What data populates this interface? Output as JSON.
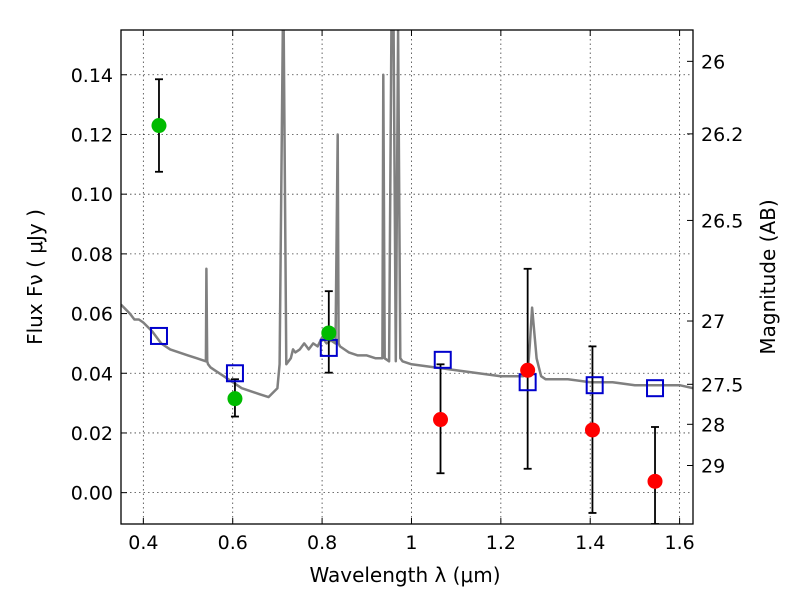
{
  "chart_data": {
    "type": "scatter",
    "xlabel": "Wavelength  λ (μm)",
    "ylabel": "Flux  Fν  ( μJy )",
    "y2label": "Magnitude (AB)",
    "xlim": [
      0.35,
      1.63
    ],
    "ylim": [
      -0.0105,
      0.155
    ],
    "grid": true,
    "x_ticks": [
      0.4,
      0.6,
      0.8,
      1.0,
      1.2,
      1.4,
      1.6
    ],
    "x_tick_labels": [
      "0.4",
      "0.6",
      "0.8",
      "1",
      "1.2",
      "1.4",
      "1.6"
    ],
    "y_ticks": [
      0.0,
      0.02,
      0.04,
      0.06,
      0.08,
      0.1,
      0.12,
      0.14
    ],
    "y_tick_labels": [
      "0.00",
      "0.02",
      "0.04",
      "0.06",
      "0.08",
      "0.10",
      "0.12",
      "0.14"
    ],
    "y2_ticks": [
      {
        "label": "26",
        "flux": 0.1445
      },
      {
        "label": "26.2",
        "flux": 0.1202
      },
      {
        "label": "26.5",
        "flux": 0.0912
      },
      {
        "label": "27",
        "flux": 0.0575
      },
      {
        "label": "27.5",
        "flux": 0.0363
      },
      {
        "label": "28",
        "flux": 0.0229
      },
      {
        "label": "29",
        "flux": 0.0091
      }
    ],
    "colors": {
      "model": "#808080",
      "optical_points": "#00bb00",
      "nir_points": "#ff0000",
      "model_photometry": "#0000cc",
      "errorbars": "#000000"
    },
    "series": [
      {
        "kind": "model_spectrum",
        "x": [
          0.35,
          0.37,
          0.38,
          0.39,
          0.4,
          0.42,
          0.44,
          0.46,
          0.48,
          0.5,
          0.52,
          0.54,
          0.541,
          0.543,
          0.545,
          0.55,
          0.56,
          0.58,
          0.6,
          0.62,
          0.64,
          0.66,
          0.68,
          0.7,
          0.705,
          0.712,
          0.714,
          0.72,
          0.73,
          0.735,
          0.74,
          0.75,
          0.76,
          0.765,
          0.77,
          0.78,
          0.79,
          0.8,
          0.81,
          0.82,
          0.83,
          0.835,
          0.837,
          0.84,
          0.85,
          0.86,
          0.88,
          0.9,
          0.92,
          0.935,
          0.937,
          0.94,
          0.95,
          0.955,
          0.96,
          0.965,
          0.97,
          0.975,
          0.98,
          1.0,
          1.05,
          1.1,
          1.15,
          1.2,
          1.25,
          1.26,
          1.265,
          1.27,
          1.28,
          1.29,
          1.3,
          1.35,
          1.4,
          1.45,
          1.5,
          1.55,
          1.6,
          1.63
        ],
        "y": [
          0.063,
          0.06,
          0.058,
          0.058,
          0.057,
          0.054,
          0.05,
          0.048,
          0.047,
          0.046,
          0.045,
          0.044,
          0.075,
          0.044,
          0.043,
          0.042,
          0.041,
          0.039,
          0.037,
          0.035,
          0.034,
          0.033,
          0.032,
          0.035,
          0.043,
          0.155,
          0.155,
          0.043,
          0.045,
          0.048,
          0.047,
          0.048,
          0.05,
          0.049,
          0.048,
          0.05,
          0.049,
          0.052,
          0.05,
          0.051,
          0.05,
          0.12,
          0.05,
          0.049,
          0.048,
          0.047,
          0.046,
          0.046,
          0.045,
          0.045,
          0.14,
          0.045,
          0.044,
          0.155,
          0.155,
          0.044,
          0.155,
          0.045,
          0.044,
          0.043,
          0.042,
          0.041,
          0.04,
          0.039,
          0.039,
          0.04,
          0.05,
          0.062,
          0.045,
          0.039,
          0.038,
          0.038,
          0.037,
          0.037,
          0.036,
          0.036,
          0.036,
          0.035
        ]
      },
      {
        "kind": "observed_optical",
        "x": [
          0.435,
          0.605,
          0.815
        ],
        "y": [
          0.123,
          0.0315,
          0.0535
        ],
        "yerr_low": [
          0.1075,
          0.0255,
          0.0402
        ],
        "yerr_high": [
          0.1385,
          0.038,
          0.0675
        ]
      },
      {
        "kind": "observed_nir",
        "x": [
          1.065,
          1.26,
          1.405,
          1.545
        ],
        "y": [
          0.0245,
          0.041,
          0.021,
          0.0038
        ],
        "yerr_low": [
          0.0065,
          0.008,
          -0.0068,
          -0.0105
        ],
        "yerr_high": [
          0.043,
          0.075,
          0.049,
          0.022
        ]
      },
      {
        "kind": "model_photometry",
        "x": [
          0.435,
          0.605,
          0.815,
          1.07,
          1.26,
          1.41,
          1.545
        ],
        "y": [
          0.0525,
          0.04,
          0.0485,
          0.0445,
          0.037,
          0.036,
          0.035
        ]
      }
    ]
  }
}
